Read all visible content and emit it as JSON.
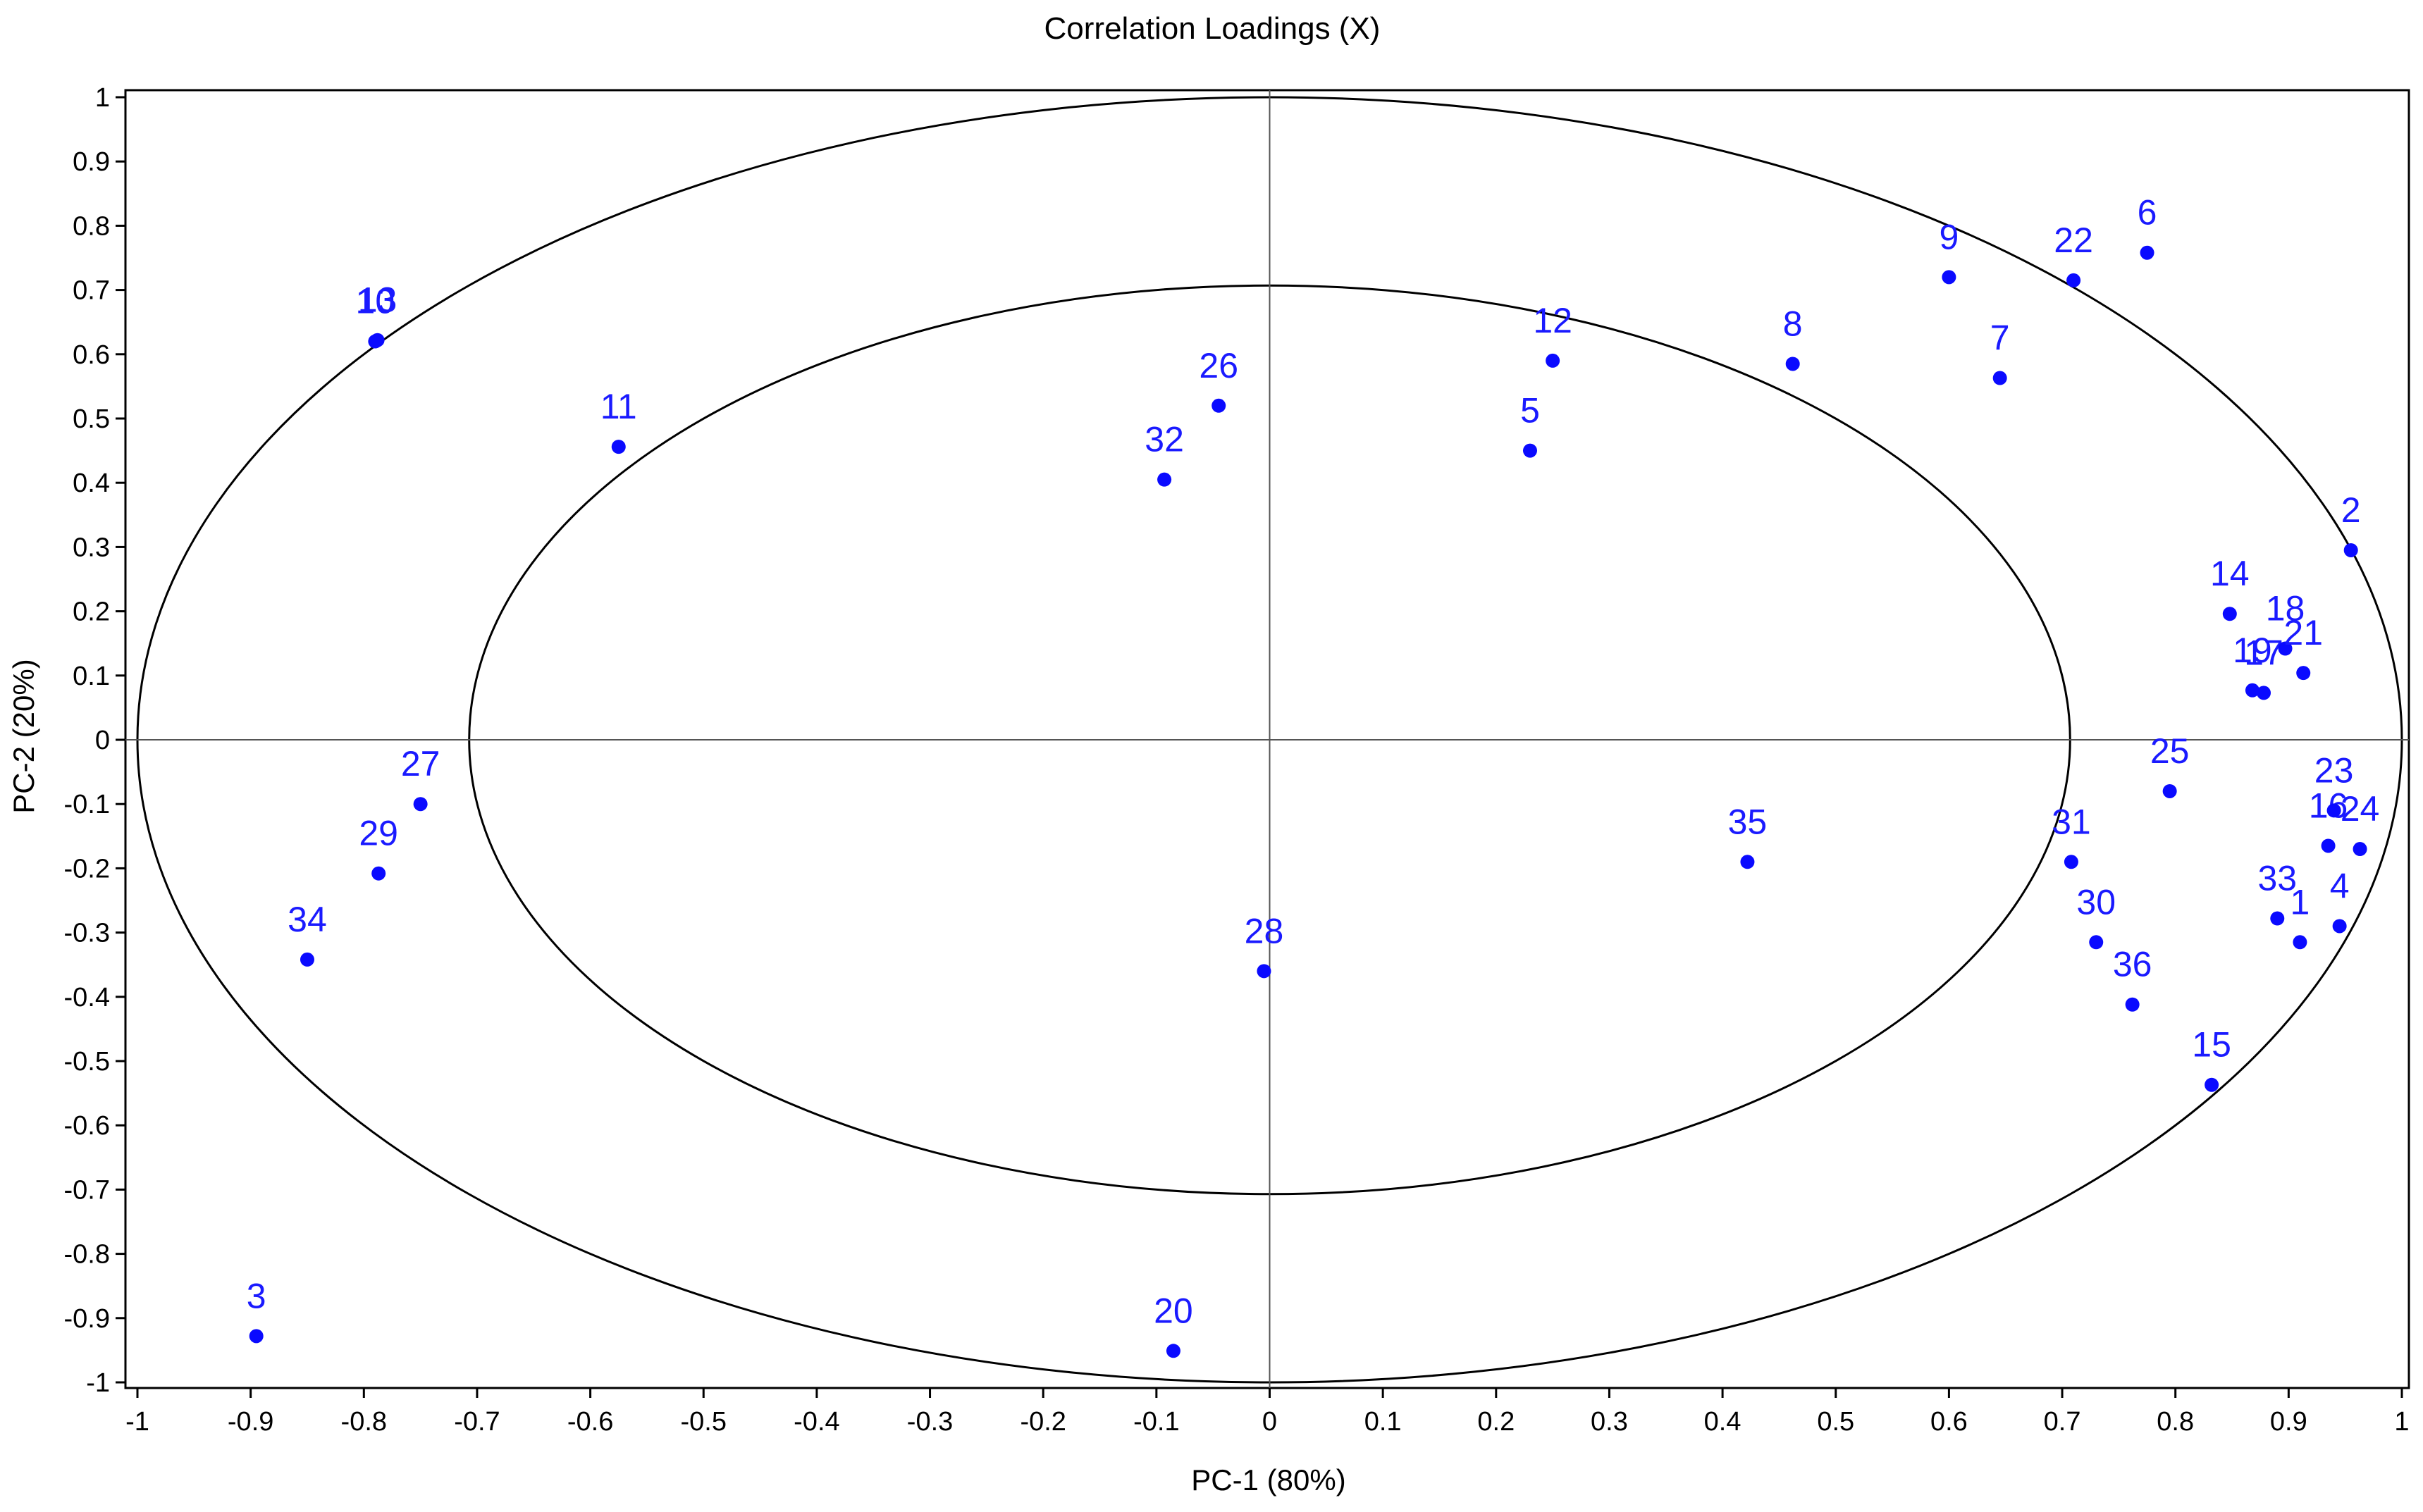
{
  "chart_data": {
    "type": "scatter",
    "title": "Correlation Loadings (X)",
    "xlabel": "PC-1 (80%)",
    "ylabel": "PC-2 (20%)",
    "xlim": [
      -1,
      1
    ],
    "ylim": [
      -1,
      1
    ],
    "x_ticks": [
      "-1",
      "-0.9",
      "-0.8",
      "-0.7",
      "-0.6",
      "-0.5",
      "-0.4",
      "-0.3",
      "-0.2",
      "-0.1",
      "0",
      "0.1",
      "0.2",
      "0.3",
      "0.4",
      "0.5",
      "0.6",
      "0.7",
      "0.8",
      "0.9",
      "1"
    ],
    "y_ticks": [
      "1",
      "0.9",
      "0.8",
      "0.7",
      "0.6",
      "0.5",
      "0.4",
      "0.3",
      "0.2",
      "0.1",
      "0",
      "-0.1",
      "-0.2",
      "-0.3",
      "-0.4",
      "-0.5",
      "-0.6",
      "-0.7",
      "-0.8",
      "-0.9",
      "-1"
    ],
    "ellipse_radii": [
      1.0,
      0.707
    ],
    "grid": false,
    "point_color": "#0a0aff",
    "label_color": "#1a1aff",
    "points": [
      {
        "label": "1",
        "x": 0.91,
        "y": -0.315
      },
      {
        "label": "2",
        "x": 0.955,
        "y": 0.295
      },
      {
        "label": "3",
        "x": -0.895,
        "y": -0.928
      },
      {
        "label": "4",
        "x": 0.945,
        "y": -0.29
      },
      {
        "label": "5",
        "x": 0.23,
        "y": 0.45
      },
      {
        "label": "6",
        "x": 0.775,
        "y": 0.758
      },
      {
        "label": "7",
        "x": 0.645,
        "y": 0.563
      },
      {
        "label": "8",
        "x": 0.462,
        "y": 0.585
      },
      {
        "label": "9",
        "x": 0.6,
        "y": 0.72
      },
      {
        "label": "10",
        "x": -0.79,
        "y": 0.62
      },
      {
        "label": "11",
        "x": -0.575,
        "y": 0.456
      },
      {
        "label": "12",
        "x": 0.25,
        "y": 0.59
      },
      {
        "label": "13",
        "x": -0.788,
        "y": 0.622
      },
      {
        "label": "14",
        "x": 0.848,
        "y": 0.196
      },
      {
        "label": "15",
        "x": 0.832,
        "y": -0.537
      },
      {
        "label": "16",
        "x": 0.935,
        "y": -0.165
      },
      {
        "label": "17",
        "x": 0.878,
        "y": 0.073
      },
      {
        "label": "18",
        "x": 0.897,
        "y": 0.142
      },
      {
        "label": "19",
        "x": 0.868,
        "y": 0.077
      },
      {
        "label": "20",
        "x": -0.085,
        "y": -0.951
      },
      {
        "label": "21",
        "x": 0.913,
        "y": 0.104
      },
      {
        "label": "22",
        "x": 0.71,
        "y": 0.715
      },
      {
        "label": "23",
        "x": 0.94,
        "y": -0.11
      },
      {
        "label": "24",
        "x": 0.963,
        "y": -0.17
      },
      {
        "label": "25",
        "x": 0.795,
        "y": -0.08
      },
      {
        "label": "26",
        "x": -0.045,
        "y": 0.52
      },
      {
        "label": "27",
        "x": -0.75,
        "y": -0.1
      },
      {
        "label": "28",
        "x": -0.005,
        "y": -0.36
      },
      {
        "label": "29",
        "x": -0.787,
        "y": -0.208
      },
      {
        "label": "30",
        "x": 0.73,
        "y": -0.315
      },
      {
        "label": "31",
        "x": 0.708,
        "y": -0.19
      },
      {
        "label": "32",
        "x": -0.093,
        "y": 0.405
      },
      {
        "label": "33",
        "x": 0.89,
        "y": -0.278
      },
      {
        "label": "34",
        "x": -0.85,
        "y": -0.342
      },
      {
        "label": "35",
        "x": 0.422,
        "y": -0.19
      },
      {
        "label": "36",
        "x": 0.762,
        "y": -0.412
      }
    ]
  }
}
